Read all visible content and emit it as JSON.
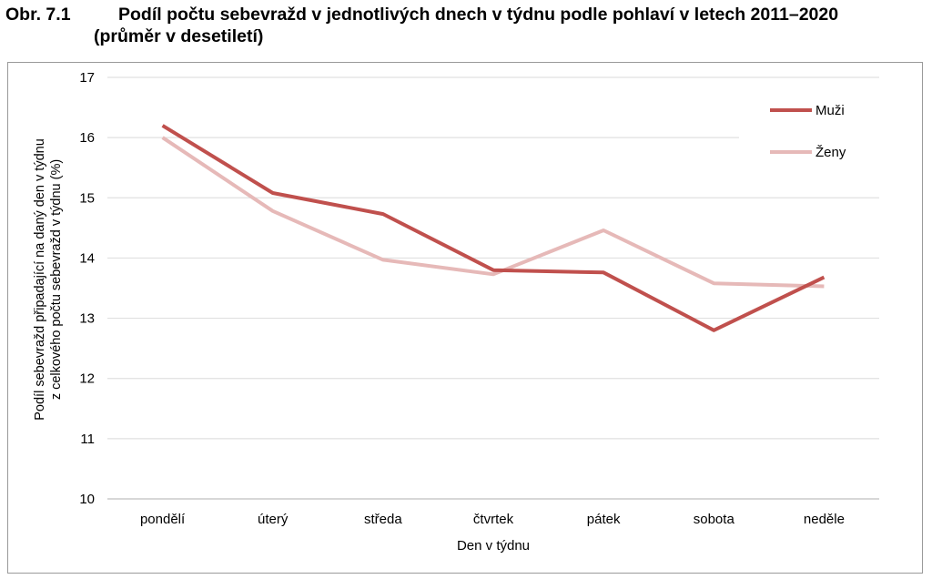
{
  "figure": {
    "number": "Obr. 7.1",
    "title_line1": "Podíl počtu sebevražd v jednotlivých dnech v týdnu podle pohlaví v letech 2011–2020",
    "title_line2": "(průměr v desetiletí)"
  },
  "chart_data": {
    "type": "line",
    "categories": [
      "pondělí",
      "úterý",
      "středa",
      "čtvrtek",
      "pátek",
      "sobota",
      "neděle"
    ],
    "series": [
      {
        "name": "Muži",
        "color": "#c0504d",
        "values": [
          16.2,
          15.08,
          14.73,
          13.8,
          13.76,
          12.8,
          13.68
        ]
      },
      {
        "name": "Ženy",
        "color": "#e6b9b8",
        "values": [
          16.0,
          14.78,
          13.97,
          13.73,
          14.46,
          13.58,
          13.53
        ]
      }
    ],
    "xlabel": "Den v týdnu",
    "ylabel_line1": "Podíl sebevražd připadající na daný den v týdnu",
    "ylabel_line2": "z celkového počtu sebevražd v týdnu (%)",
    "ylim": [
      10,
      17
    ],
    "yticks": [
      "10",
      "11",
      "12",
      "13",
      "14",
      "15",
      "16",
      "17"
    ],
    "grid": true,
    "legend_position": "top-right"
  }
}
